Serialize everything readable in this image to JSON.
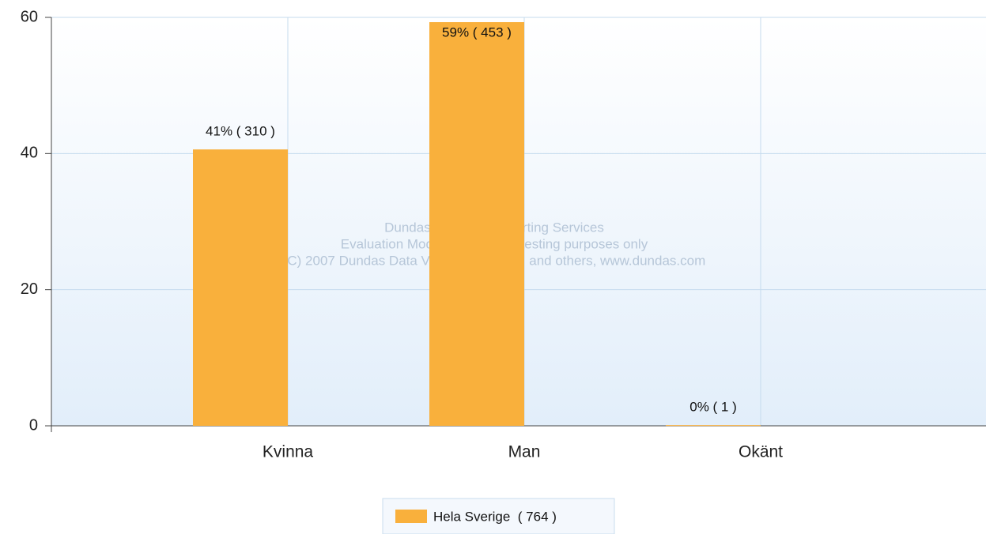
{
  "chart_data": {
    "type": "bar",
    "categories": [
      "Kvinna",
      "Man",
      "Okänt"
    ],
    "series": [
      {
        "name": "Hela Sverige  ( 764 )",
        "color": "#f9b03c",
        "values": [
          40.6,
          59.3,
          0.1
        ],
        "value_labels": [
          "41% ( 310 )",
          "59% ( 453 )",
          "0% ( 1 )"
        ]
      }
    ],
    "ylim": [
      0,
      60
    ],
    "yticks": [
      0,
      20,
      40,
      60
    ],
    "grid": true,
    "annotations": [
      "Dundas Chart for Reporting Services",
      "Evaluation Mode Enabled, for testing purposes only",
      "(C) 2007 Dundas Data Visualization, Inc. and others, www.dundas.com"
    ]
  }
}
